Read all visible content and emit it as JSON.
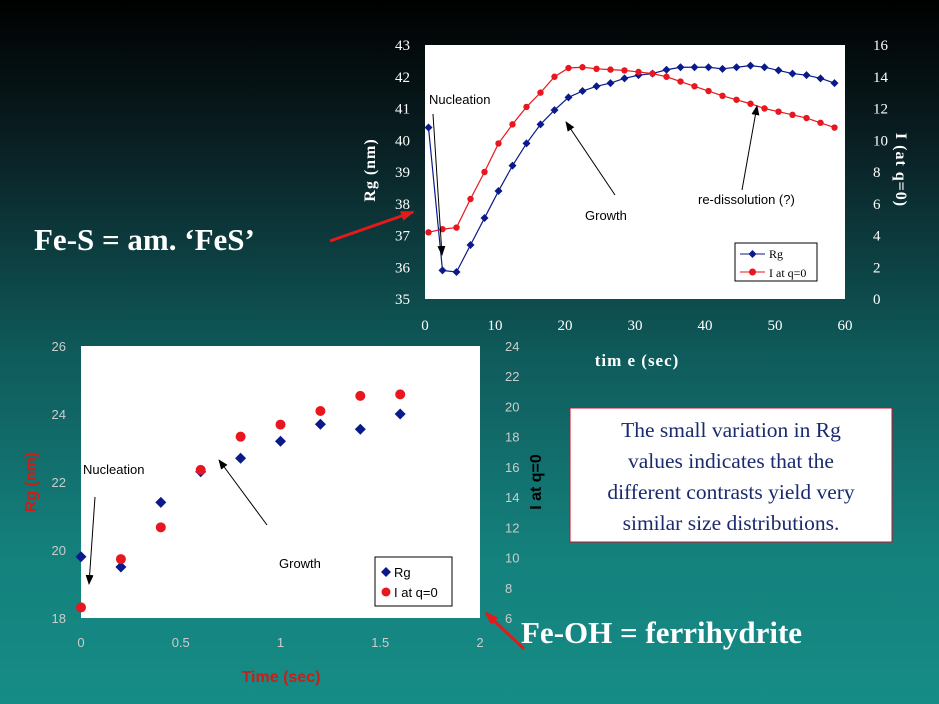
{
  "colors": {
    "rg_series": "#0a1a8a",
    "i_series": "#e8161e",
    "arrow_red": "#e21a1a",
    "text_white": "#ffffff",
    "text_dark": "#000000",
    "chart_bg": "#ffffff",
    "note_border": "#c8102e"
  },
  "labels": {
    "fes_title": "Fe-S = am. ‘FeS’",
    "feoh_title": "Fe-OH = ferrihydrite",
    "note": "The small variation in Rg values indicates that the different contrasts yield very similar size distributions."
  },
  "chart_data": [
    {
      "type": "line",
      "xlabel": "tim e (sec)",
      "ylabel": "Rg (nm)",
      "y2label": "I (at q=0)",
      "xlim": [
        0,
        60
      ],
      "ylim": [
        35,
        43
      ],
      "y2lim": [
        0,
        16
      ],
      "xticks": [
        0,
        10,
        20,
        30,
        40,
        50,
        60
      ],
      "yticks": [
        35,
        36,
        37,
        38,
        39,
        40,
        41,
        42,
        43
      ],
      "y2ticks": [
        0,
        2,
        4,
        6,
        8,
        10,
        12,
        14,
        16
      ],
      "legend_position": "bottom-right",
      "series": [
        {
          "name": "Rg",
          "axis": "left",
          "marker": "diamond",
          "x": [
            0.5,
            2.5,
            4.5,
            6.5,
            8.5,
            10.5,
            12.5,
            14.5,
            16.5,
            18.5,
            20.5,
            22.5,
            24.5,
            26.5,
            28.5,
            30.5,
            32.5,
            34.5,
            36.5,
            38.5,
            40.5,
            42.5,
            44.5,
            46.5,
            48.5,
            50.5,
            52.5,
            54.5,
            56.5,
            58.5
          ],
          "values": [
            40.4,
            35.9,
            35.85,
            36.7,
            37.55,
            38.4,
            39.2,
            39.9,
            40.5,
            40.95,
            41.35,
            41.55,
            41.7,
            41.8,
            41.95,
            42.05,
            42.1,
            42.22,
            42.3,
            42.3,
            42.3,
            42.25,
            42.3,
            42.35,
            42.3,
            42.2,
            42.1,
            42.05,
            41.95,
            41.8
          ]
        },
        {
          "name": "I at q=0",
          "axis": "right",
          "marker": "circle",
          "x": [
            0.5,
            2.5,
            4.5,
            6.5,
            8.5,
            10.5,
            12.5,
            14.5,
            16.5,
            18.5,
            20.5,
            22.5,
            24.5,
            26.5,
            28.5,
            30.5,
            32.5,
            34.5,
            36.5,
            38.5,
            40.5,
            42.5,
            44.5,
            46.5,
            48.5,
            50.5,
            52.5,
            54.5,
            56.5,
            58.5
          ],
          "values": [
            4.2,
            4.4,
            4.5,
            6.3,
            8.0,
            9.8,
            11.0,
            12.1,
            13.0,
            14.0,
            14.55,
            14.6,
            14.5,
            14.45,
            14.4,
            14.3,
            14.2,
            14.0,
            13.7,
            13.4,
            13.1,
            12.8,
            12.55,
            12.3,
            12.0,
            11.8,
            11.6,
            11.4,
            11.1,
            10.8
          ]
        }
      ],
      "annotations": [
        "Nucleation",
        "Growth",
        "re-dissolution (?)"
      ]
    },
    {
      "type": "scatter",
      "xlabel": "Time (sec)",
      "ylabel": "Rg (nm)",
      "y2label": "I at q=0",
      "xlim": [
        0,
        2
      ],
      "ylim": [
        18,
        26
      ],
      "y2lim": [
        6,
        24
      ],
      "xticks": [
        0,
        0.5,
        1,
        1.5,
        2
      ],
      "yticks": [
        18,
        20,
        22,
        24,
        26
      ],
      "y2ticks": [
        6,
        8,
        10,
        12,
        14,
        16,
        18,
        20,
        22,
        24
      ],
      "legend_position": "bottom-right",
      "series": [
        {
          "name": "Rg",
          "axis": "left",
          "marker": "diamond",
          "x": [
            0,
            0.2,
            0.4,
            0.6,
            0.8,
            1.0,
            1.2,
            1.4,
            1.6
          ],
          "values": [
            19.8,
            19.5,
            21.4,
            22.3,
            22.7,
            23.2,
            23.7,
            23.55,
            24.0
          ]
        },
        {
          "name": "I at q=0",
          "axis": "right",
          "marker": "circle",
          "x": [
            0,
            0.2,
            0.4,
            0.6,
            0.8,
            1.0,
            1.2,
            1.4,
            1.6
          ],
          "values": [
            6.7,
            9.9,
            12.0,
            15.8,
            18.0,
            18.8,
            19.7,
            20.7,
            20.8
          ]
        }
      ],
      "annotations": [
        "Nucleation",
        "Growth"
      ]
    }
  ]
}
